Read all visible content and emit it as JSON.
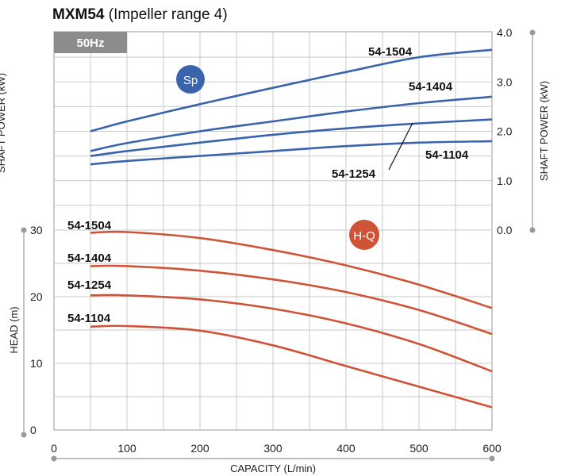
{
  "title": {
    "model": "MXM54",
    "subtitle": "(Impeller range 4)"
  },
  "chart_data": {
    "type": "line",
    "frequency_badge": "50Hz",
    "x": {
      "label": "CAPACITY (L/min)",
      "range": [
        0,
        600
      ],
      "ticks": [
        0,
        100,
        200,
        300,
        400,
        500,
        600
      ]
    },
    "y_left": {
      "label": "HEAD (m)",
      "range": [
        0,
        30
      ],
      "ticks": [
        0,
        10,
        20,
        30
      ]
    },
    "y_left_upper_label": "SHAFT POWER (kW)",
    "y_right": {
      "label": "SHAFT POWER (kW)",
      "range": [
        0.0,
        4.0
      ],
      "ticks": [
        "0.0",
        "1.0",
        "2.0",
        "3.0",
        "4.0"
      ]
    },
    "grid": true,
    "group_badges": {
      "power": "Sp",
      "head": "H-Q"
    },
    "colors": {
      "power": "#3a63ad",
      "head": "#cf5337",
      "badge": "#8c8c8c",
      "grid": "#c9c9c9"
    },
    "head_series": [
      {
        "name": "54-1504",
        "x": [
          50,
          100,
          200,
          300,
          400,
          500,
          600
        ],
        "y": [
          29.6,
          29.7,
          28.8,
          27.0,
          24.7,
          21.8,
          18.3
        ]
      },
      {
        "name": "54-1404",
        "x": [
          50,
          100,
          200,
          300,
          400,
          500,
          600
        ],
        "y": [
          24.6,
          24.6,
          23.9,
          22.6,
          20.7,
          18.0,
          14.4
        ]
      },
      {
        "name": "54-1254",
        "x": [
          50,
          100,
          200,
          300,
          400,
          500,
          600
        ],
        "y": [
          20.2,
          20.2,
          19.6,
          18.2,
          16.0,
          12.9,
          8.8
        ]
      },
      {
        "name": "54-1104",
        "x": [
          50,
          100,
          200,
          300,
          400,
          500,
          600
        ],
        "y": [
          15.5,
          15.6,
          14.9,
          12.7,
          9.6,
          6.5,
          3.4
        ]
      }
    ],
    "power_series": [
      {
        "name": "54-1504",
        "x": [
          50,
          100,
          200,
          300,
          400,
          500,
          600
        ],
        "y": [
          2.0,
          2.2,
          2.55,
          2.88,
          3.2,
          3.5,
          3.65
        ]
      },
      {
        "name": "54-1404",
        "x": [
          50,
          100,
          200,
          300,
          400,
          500,
          600
        ],
        "y": [
          1.6,
          1.76,
          2.0,
          2.2,
          2.4,
          2.57,
          2.7
        ]
      },
      {
        "name": "54-1254",
        "x": [
          50,
          100,
          200,
          300,
          400,
          500,
          600
        ],
        "y": [
          1.5,
          1.6,
          1.77,
          1.93,
          2.06,
          2.16,
          2.24
        ]
      },
      {
        "name": "54-1104",
        "x": [
          50,
          100,
          200,
          300,
          400,
          500,
          600
        ],
        "y": [
          1.33,
          1.4,
          1.5,
          1.6,
          1.7,
          1.77,
          1.8
        ]
      }
    ]
  }
}
